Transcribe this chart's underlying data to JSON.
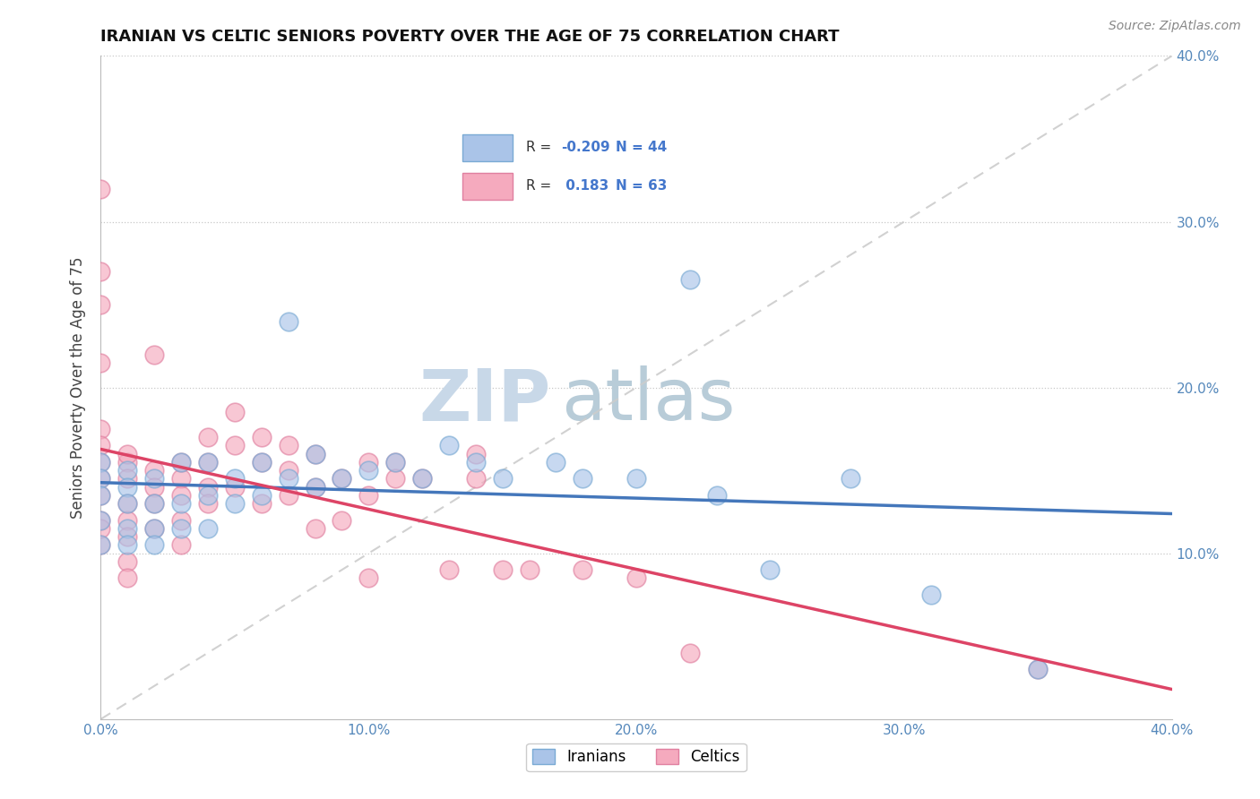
{
  "title": "IRANIAN VS CELTIC SENIORS POVERTY OVER THE AGE OF 75 CORRELATION CHART",
  "source": "Source: ZipAtlas.com",
  "ylabel": "Seniors Poverty Over the Age of 75",
  "xlim": [
    0.0,
    0.4
  ],
  "ylim": [
    0.0,
    0.4
  ],
  "xticks": [
    0.0,
    0.1,
    0.2,
    0.3,
    0.4
  ],
  "yticks": [
    0.1,
    0.2,
    0.3,
    0.4
  ],
  "xticklabels": [
    "0.0%",
    "10.0%",
    "20.0%",
    "30.0%",
    "40.0%"
  ],
  "yticklabels": [
    "10.0%",
    "20.0%",
    "30.0%",
    "40.0%"
  ],
  "iranian_color": "#aac4e8",
  "celtic_color": "#f5aabe",
  "iranian_edge": "#7aaad4",
  "celtic_edge": "#e080a0",
  "trend_iranian_color": "#4477bb",
  "trend_celtic_color": "#dd4466",
  "diag_color": "#cccccc",
  "watermark_zip_color": "#c8d8e8",
  "watermark_atlas_color": "#b8ccd8",
  "R_iranian": -0.209,
  "N_iranian": 44,
  "R_celtic": 0.183,
  "N_celtic": 63,
  "iranians_x": [
    0.0,
    0.0,
    0.0,
    0.0,
    0.0,
    0.01,
    0.01,
    0.01,
    0.01,
    0.01,
    0.02,
    0.02,
    0.02,
    0.02,
    0.03,
    0.03,
    0.03,
    0.04,
    0.04,
    0.04,
    0.05,
    0.05,
    0.06,
    0.06,
    0.07,
    0.07,
    0.08,
    0.08,
    0.09,
    0.1,
    0.11,
    0.12,
    0.13,
    0.14,
    0.15,
    0.17,
    0.18,
    0.2,
    0.22,
    0.23,
    0.25,
    0.28,
    0.31,
    0.35
  ],
  "iranians_y": [
    0.155,
    0.145,
    0.135,
    0.12,
    0.105,
    0.15,
    0.14,
    0.13,
    0.115,
    0.105,
    0.145,
    0.13,
    0.115,
    0.105,
    0.155,
    0.13,
    0.115,
    0.155,
    0.135,
    0.115,
    0.145,
    0.13,
    0.155,
    0.135,
    0.24,
    0.145,
    0.16,
    0.14,
    0.145,
    0.15,
    0.155,
    0.145,
    0.165,
    0.155,
    0.145,
    0.155,
    0.145,
    0.145,
    0.265,
    0.135,
    0.09,
    0.145,
    0.075,
    0.03
  ],
  "celtics_x": [
    0.0,
    0.0,
    0.0,
    0.0,
    0.0,
    0.0,
    0.0,
    0.0,
    0.0,
    0.0,
    0.0,
    0.0,
    0.01,
    0.01,
    0.01,
    0.01,
    0.01,
    0.01,
    0.01,
    0.01,
    0.02,
    0.02,
    0.02,
    0.02,
    0.02,
    0.03,
    0.03,
    0.03,
    0.03,
    0.03,
    0.04,
    0.04,
    0.04,
    0.04,
    0.05,
    0.05,
    0.05,
    0.06,
    0.06,
    0.06,
    0.07,
    0.07,
    0.07,
    0.08,
    0.08,
    0.08,
    0.09,
    0.09,
    0.1,
    0.1,
    0.1,
    0.11,
    0.11,
    0.12,
    0.13,
    0.14,
    0.14,
    0.15,
    0.16,
    0.18,
    0.2,
    0.22,
    0.35
  ],
  "celtics_y": [
    0.155,
    0.145,
    0.135,
    0.12,
    0.175,
    0.215,
    0.27,
    0.32,
    0.105,
    0.115,
    0.165,
    0.25,
    0.155,
    0.145,
    0.16,
    0.13,
    0.12,
    0.11,
    0.095,
    0.085,
    0.15,
    0.14,
    0.13,
    0.115,
    0.22,
    0.145,
    0.135,
    0.155,
    0.12,
    0.105,
    0.17,
    0.155,
    0.14,
    0.13,
    0.185,
    0.165,
    0.14,
    0.17,
    0.155,
    0.13,
    0.165,
    0.15,
    0.135,
    0.16,
    0.14,
    0.115,
    0.145,
    0.12,
    0.155,
    0.135,
    0.085,
    0.155,
    0.145,
    0.145,
    0.09,
    0.16,
    0.145,
    0.09,
    0.09,
    0.09,
    0.085,
    0.04,
    0.03
  ]
}
